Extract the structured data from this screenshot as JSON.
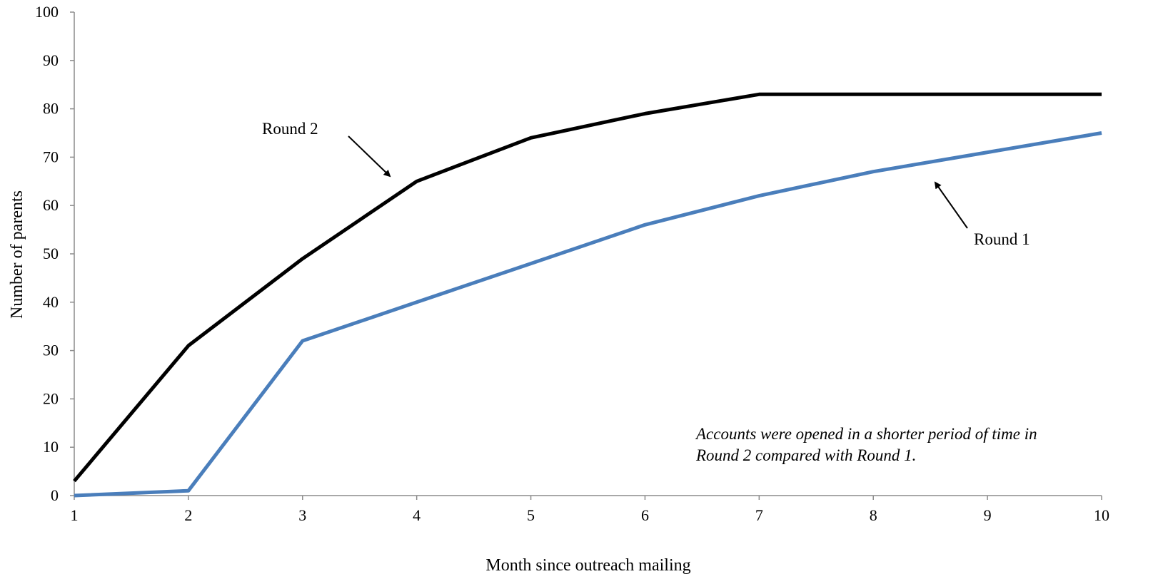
{
  "chart_data": {
    "type": "line",
    "x": [
      1,
      2,
      3,
      4,
      5,
      6,
      7,
      8,
      9,
      10
    ],
    "xlabel": "Month since outreach mailing",
    "ylabel": "Number of parents",
    "xlim": [
      1,
      10
    ],
    "ylim": [
      0,
      100
    ],
    "x_ticks": [
      "1",
      "2",
      "3",
      "4",
      "5",
      "6",
      "7",
      "8",
      "9",
      "10"
    ],
    "y_ticks": [
      "0",
      "10",
      "20",
      "30",
      "40",
      "50",
      "60",
      "70",
      "80",
      "90",
      "100"
    ],
    "grid": false,
    "legend": "none (series labelled directly with arrows)",
    "series": [
      {
        "name": "Round 2",
        "color": "#000000",
        "values": [
          3,
          31,
          49,
          65,
          74,
          79,
          83,
          83,
          83,
          83
        ]
      },
      {
        "name": "Round 1",
        "color": "#4a7ebb",
        "values": [
          0,
          1,
          32,
          40,
          48,
          56,
          62,
          67,
          71,
          75
        ]
      }
    ],
    "annotations": {
      "round2_label": "Round 2",
      "round1_label": "Round 1",
      "note_line1": "Accounts were opened in a shorter period of time in",
      "note_line2": "Round 2 compared with Round 1."
    }
  }
}
